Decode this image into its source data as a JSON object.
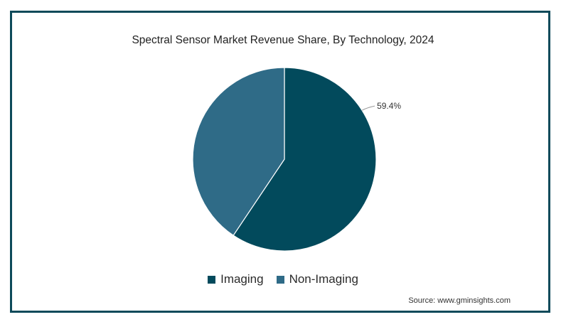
{
  "chart_data": {
    "type": "pie",
    "title": "Spectral Sensor Market Revenue Share, By Technology, 2024",
    "slices": [
      {
        "name": "Imaging",
        "value": 59.4,
        "label": "59.4%",
        "color": "#024a5c"
      },
      {
        "name": "Non-Imaging",
        "value": 40.6,
        "label": "",
        "color": "#2f6b87"
      }
    ],
    "legend_position": "bottom"
  },
  "source": "Source: www.gminsights.com"
}
